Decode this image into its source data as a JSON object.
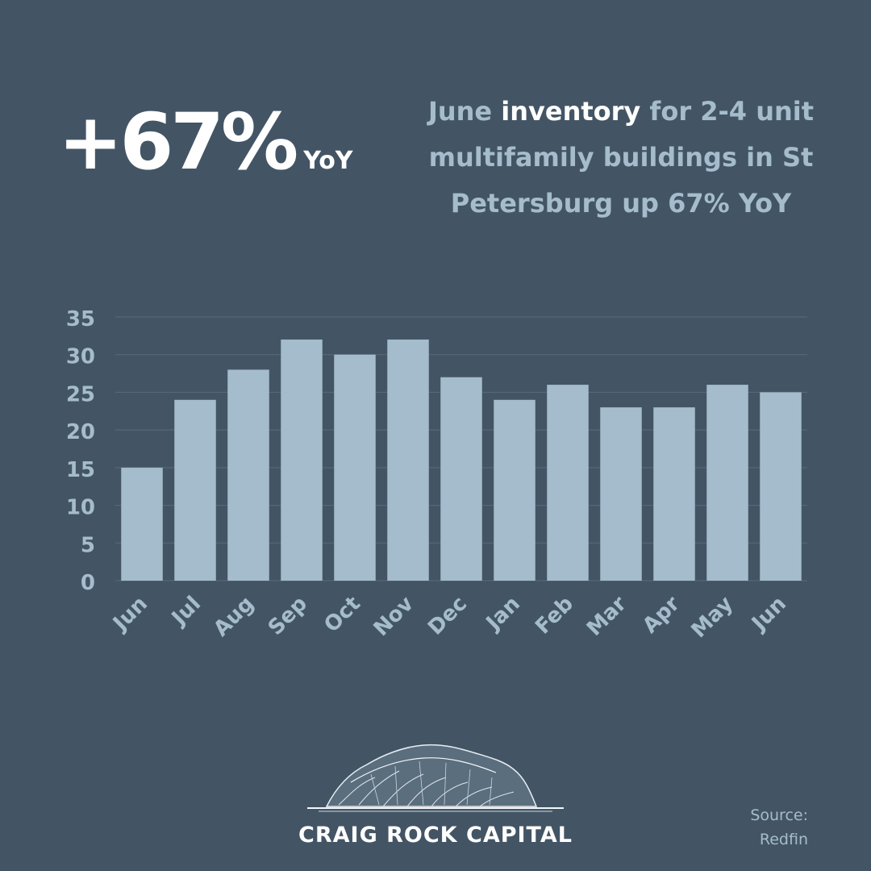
{
  "stat": {
    "value": "+67%",
    "unit": "YoY"
  },
  "headline": {
    "before": "June ",
    "highlight": "inventory",
    "after": " for 2-4 unit multifamily buildings in St Petersburg up 67% YoY"
  },
  "chart_data": {
    "type": "bar",
    "categories": [
      "Jun",
      "Jul",
      "Aug",
      "Sep",
      "Oct",
      "Nov",
      "Dec",
      "Jan",
      "Feb",
      "Mar",
      "Apr",
      "May",
      "Jun"
    ],
    "values": [
      15,
      24,
      28,
      32,
      30,
      32,
      27,
      24,
      26,
      23,
      23,
      26,
      25
    ],
    "title": "",
    "xlabel": "",
    "ylabel": "",
    "ylim": [
      0,
      35
    ],
    "yticks": [
      0,
      5,
      10,
      15,
      20,
      25,
      30,
      35
    ],
    "grid": true,
    "bar_color": "#a5bccd",
    "grid_color": "#5a6c7b",
    "tick_color": "#a5bccd"
  },
  "colors": {
    "background": "#435565",
    "accent": "#a5bccd",
    "highlight": "#ffffff"
  },
  "brand": {
    "name": "CRAIG ROCK CAPITAL",
    "logo_icon": "rock-mountain-icon"
  },
  "source": {
    "label": "Source:",
    "name": "Redfin"
  }
}
